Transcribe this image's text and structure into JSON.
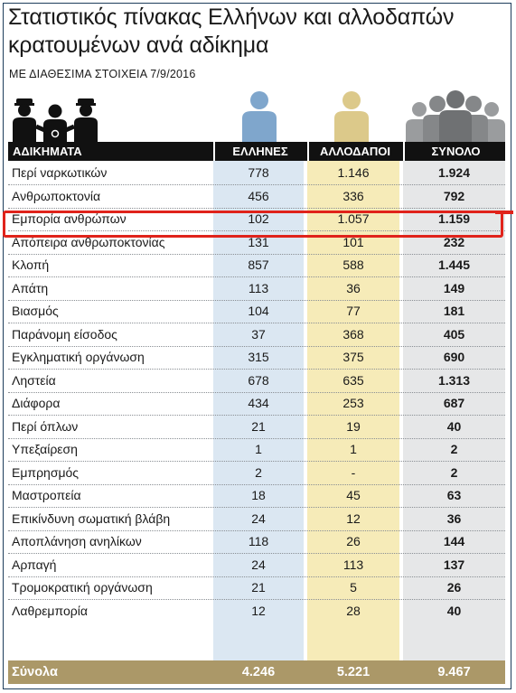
{
  "title": "Στατιστικός πίνακας Ελλήνων και αλλοδαπών κρατουμένων ανά αδίκημα",
  "subtitle": "ΜΕ ΔΙΑΘΕΣΙΜΑ ΣΤΟΙΧΕΙΑ 7/9/2016",
  "icons": {
    "prisoners": "prisoner-with-guards-icon",
    "greeks": "person-blue-icon",
    "foreigners": "person-gold-icon",
    "total": "group-grey-icon"
  },
  "colors": {
    "header": "#111111",
    "greeks_col": "#dbe7f2",
    "foreigners_col": "#f6ebb8",
    "total_col": "#e6e7e8",
    "footer": "#ab9868",
    "highlight": "#e0231b"
  },
  "chart_data": {
    "type": "table",
    "columns": [
      "ΑΔΙΚΗΜΑΤΑ",
      "ΕΛΛΗΝΕΣ",
      "ΑΛΛΟΔΑΠΟΙ",
      "ΣΥΝΟΛΟ"
    ],
    "rows": [
      [
        "Περί ναρκωτικών",
        "778",
        "1.146",
        "1.924"
      ],
      [
        "Ανθρωποκτονία",
        "456",
        "336",
        "792"
      ],
      [
        "Εμπορία ανθρώπων",
        "102",
        "1.057",
        "1.159"
      ],
      [
        "Απόπειρα ανθρωποκτονίας",
        "131",
        "101",
        "232"
      ],
      [
        "Κλοπή",
        "857",
        "588",
        "1.445"
      ],
      [
        "Απάτη",
        "113",
        "36",
        "149"
      ],
      [
        "Βιασμός",
        "104",
        "77",
        "181"
      ],
      [
        "Παράνομη είσοδος",
        "37",
        "368",
        "405"
      ],
      [
        "Εγκληματική οργάνωση",
        "315",
        "375",
        "690"
      ],
      [
        "Ληστεία",
        "678",
        "635",
        "1.313"
      ],
      [
        "Διάφορα",
        "434",
        "253",
        "687"
      ],
      [
        "Περί όπλων",
        "21",
        "19",
        "40"
      ],
      [
        "Υπεξαίρεση",
        "1",
        "1",
        "2"
      ],
      [
        "Εμπρησμός",
        "2",
        "-",
        "2"
      ],
      [
        "Μαστροπεία",
        "18",
        "45",
        "63"
      ],
      [
        "Επικίνδυνη σωματική βλάβη",
        "24",
        "12",
        "36"
      ],
      [
        "Αποπλάνηση ανηλίκων",
        "118",
        "26",
        "144"
      ],
      [
        "Αρπαγή",
        "24",
        "113",
        "137"
      ],
      [
        "Τρομοκρατική οργάνωση",
        "21",
        "5",
        "26"
      ],
      [
        "Λαθρεμπορία",
        "12",
        "28",
        "40"
      ]
    ],
    "totals": [
      "Σύνολα",
      "4.246",
      "5.221",
      "9.467"
    ],
    "highlighted_row": 2
  }
}
